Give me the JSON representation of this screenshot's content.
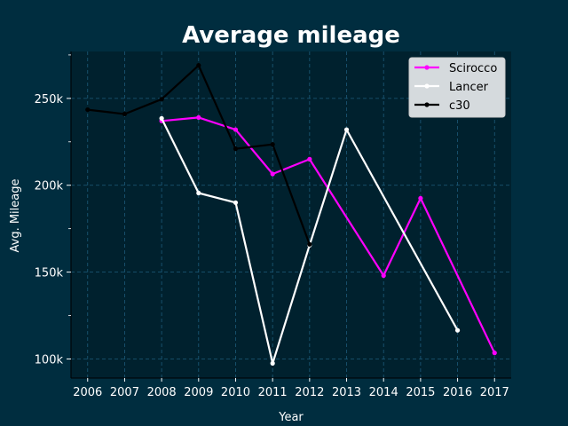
{
  "chart_data": {
    "type": "line",
    "title": "Average mileage",
    "xlabel": "Year",
    "ylabel": "Avg. Mileage",
    "x": [
      2006,
      2007,
      2008,
      2009,
      2010,
      2011,
      2012,
      2013,
      2014,
      2015,
      2016,
      2017
    ],
    "x_ticks": [
      "2006",
      "2007",
      "2008",
      "2009",
      "2010",
      "2011",
      "2012",
      "2013",
      "2014",
      "2015",
      "2016",
      "2017"
    ],
    "ylim": [
      89000,
      277000
    ],
    "y_ticks": [
      100000,
      150000,
      200000,
      250000
    ],
    "y_tick_labels": [
      "100k",
      "150k",
      "200k",
      "250k"
    ],
    "grid": true,
    "legend_position": "top-right",
    "series": [
      {
        "name": "Scirocco",
        "color": "#ff00ff",
        "points": [
          [
            2008,
            237000
          ],
          [
            2009,
            239000
          ],
          [
            2010,
            232000
          ],
          [
            2011,
            206500
          ],
          [
            2012,
            215000
          ],
          [
            2014,
            148000
          ],
          [
            2015,
            192500
          ],
          [
            2017,
            103500
          ]
        ]
      },
      {
        "name": "Lancer",
        "color": "#ffffff",
        "points": [
          [
            2008,
            238500
          ],
          [
            2009,
            195500
          ],
          [
            2010,
            190000
          ],
          [
            2011,
            97500
          ],
          [
            2012,
            165500
          ],
          [
            2013,
            232000
          ],
          [
            2016,
            116500
          ]
        ]
      },
      {
        "name": "c30",
        "color": "#000000",
        "points": [
          [
            2006,
            243500
          ],
          [
            2007,
            241000
          ],
          [
            2008,
            249500
          ],
          [
            2009,
            269000
          ],
          [
            2010,
            221000
          ],
          [
            2011,
            223500
          ],
          [
            2012,
            166000
          ]
        ]
      }
    ]
  },
  "colors": {
    "page_background": "#002d3f",
    "plot_background": "#00212e",
    "grid": "#1c5b7a",
    "axis_text": "#ffffff",
    "legend_background": "#d5dadd"
  }
}
